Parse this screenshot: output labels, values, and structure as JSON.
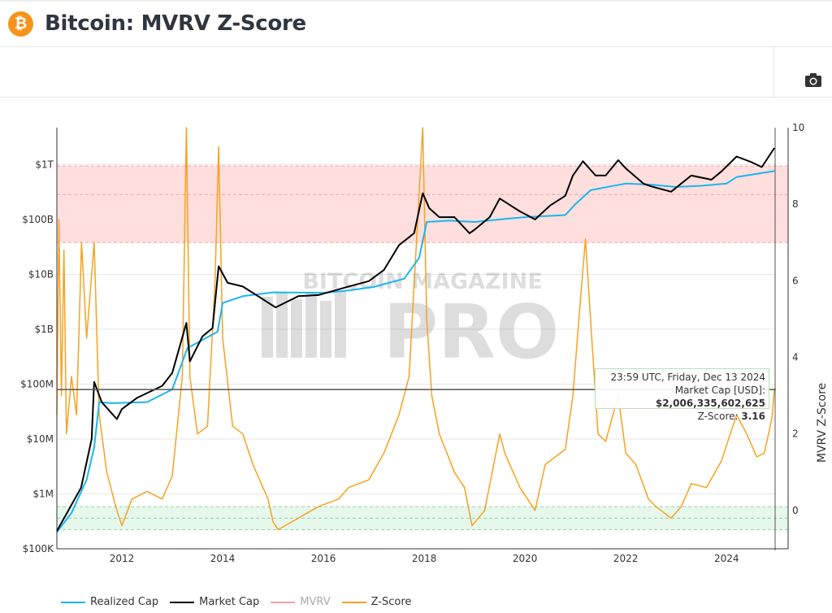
{
  "header": {
    "title": "Bitcoin: MVRV Z-Score",
    "logo_icon": "bitcoin-icon"
  },
  "toolbar": {
    "screenshot_icon": "camera-icon"
  },
  "watermark": {
    "line1": "BITCOIN MAGAZINE",
    "line2": "PRO"
  },
  "tooltip": {
    "datetime": "23:59 UTC, Friday, Dec 13 2024",
    "market_cap_label": "Market Cap [USD]: ",
    "market_cap_value": "$2,006,335,602,625",
    "zscore_label": "Z-Score: ",
    "zscore_value": "3.16"
  },
  "chart_data": {
    "type": "line",
    "x_ticks": [
      "2012",
      "2014",
      "2016",
      "2018",
      "2020",
      "2022",
      "2024"
    ],
    "xlim": [
      2010.71,
      2024.98
    ],
    "left_axis": {
      "scale": "log",
      "ticks": [
        "$100K",
        "$1M",
        "$10M",
        "$100M",
        "$1B",
        "$10B",
        "$100B",
        "$1T"
      ],
      "range": [
        100000,
        4700000000000.0
      ]
    },
    "right_axis": {
      "label": "MVRV Z-Score",
      "ticks": [
        "0",
        "2",
        "4",
        "6",
        "8",
        "10"
      ],
      "range": [
        -1,
        10
      ]
    },
    "bands": [
      {
        "from": 7,
        "to": 9,
        "mid": 8.25,
        "color": "#ffdede"
      },
      {
        "from": -0.5,
        "to": 0.1,
        "mid": -0.2,
        "color": "#e6f7ec"
      }
    ],
    "grid": true,
    "legend_placement": "bottom-left",
    "series": [
      {
        "name": "Realized Cap",
        "axis": "left",
        "color": "#1ab6ef",
        "visible": true,
        "points": [
          [
            2010.71,
            200000.0
          ],
          [
            2011.0,
            450000.0
          ],
          [
            2011.3,
            1800000.0
          ],
          [
            2011.45,
            7000000.0
          ],
          [
            2011.55,
            47000000.0
          ],
          [
            2011.8,
            45000000.0
          ],
          [
            2012.5,
            47000000.0
          ],
          [
            2013.0,
            80000000.0
          ],
          [
            2013.3,
            450000000.0
          ],
          [
            2013.9,
            900000000.0
          ],
          [
            2014.0,
            3000000000.0
          ],
          [
            2014.4,
            4000000000.0
          ],
          [
            2015.0,
            4700000000.0
          ],
          [
            2016.0,
            4600000000.0
          ],
          [
            2016.5,
            5100000000.0
          ],
          [
            2017.0,
            5900000000.0
          ],
          [
            2017.6,
            8300000000.0
          ],
          [
            2017.9,
            20000000000.0
          ],
          [
            2018.05,
            90000000000.0
          ],
          [
            2018.5,
            95000000000.0
          ],
          [
            2019.0,
            90000000000.0
          ],
          [
            2019.5,
            100000000000.0
          ],
          [
            2020.0,
            110000000000.0
          ],
          [
            2020.8,
            120000000000.0
          ],
          [
            2021.0,
            190000000000.0
          ],
          [
            2021.3,
            340000000000.0
          ],
          [
            2021.7,
            400000000000.0
          ],
          [
            2022.0,
            450000000000.0
          ],
          [
            2022.5,
            430000000000.0
          ],
          [
            2023.0,
            390000000000.0
          ],
          [
            2023.5,
            410000000000.0
          ],
          [
            2024.0,
            450000000000.0
          ],
          [
            2024.2,
            590000000000.0
          ],
          [
            2024.95,
            760000000000.0
          ]
        ]
      },
      {
        "name": "Market Cap",
        "axis": "left",
        "color": "#000000",
        "visible": true,
        "points": [
          [
            2010.71,
            210000.0
          ],
          [
            2011.19,
            1300000.0
          ],
          [
            2011.4,
            10000000.0
          ],
          [
            2011.45,
            110000000.0
          ],
          [
            2011.6,
            47000000.0
          ],
          [
            2011.9,
            23000000.0
          ],
          [
            2012.0,
            35000000.0
          ],
          [
            2012.3,
            56000000.0
          ],
          [
            2012.8,
            93000000.0
          ],
          [
            2013.0,
            160000000.0
          ],
          [
            2013.28,
            1300000000.0
          ],
          [
            2013.35,
            260000000.0
          ],
          [
            2013.6,
            740000000.0
          ],
          [
            2013.8,
            1050000000.0
          ],
          [
            2013.92,
            14000000000.0
          ],
          [
            2014.1,
            7000000000.0
          ],
          [
            2014.4,
            6000000000.0
          ],
          [
            2014.8,
            3500000000.0
          ],
          [
            2015.05,
            2500000000.0
          ],
          [
            2015.5,
            4000000000.0
          ],
          [
            2015.9,
            4200000000.0
          ],
          [
            2016.5,
            6000000000.0
          ],
          [
            2016.9,
            7500000000.0
          ],
          [
            2017.2,
            12000000000.0
          ],
          [
            2017.5,
            34000000000.0
          ],
          [
            2017.8,
            56000000000.0
          ],
          [
            2017.97,
            300000000000.0
          ],
          [
            2018.1,
            160000000000.0
          ],
          [
            2018.3,
            110000000000.0
          ],
          [
            2018.6,
            110000000000.0
          ],
          [
            2018.9,
            56000000000.0
          ],
          [
            2019.0,
            65000000000.0
          ],
          [
            2019.3,
            110000000000.0
          ],
          [
            2019.5,
            240000000000.0
          ],
          [
            2019.9,
            140000000000.0
          ],
          [
            2020.2,
            100000000000.0
          ],
          [
            2020.5,
            180000000000.0
          ],
          [
            2020.8,
            270000000000.0
          ],
          [
            2020.95,
            630000000000.0
          ],
          [
            2021.15,
            1150000000000.0
          ],
          [
            2021.4,
            630000000000.0
          ],
          [
            2021.6,
            630000000000.0
          ],
          [
            2021.85,
            1200000000000.0
          ],
          [
            2022.0,
            850000000000.0
          ],
          [
            2022.35,
            450000000000.0
          ],
          [
            2022.5,
            400000000000.0
          ],
          [
            2022.9,
            320000000000.0
          ],
          [
            2023.1,
            450000000000.0
          ],
          [
            2023.3,
            630000000000.0
          ],
          [
            2023.7,
            530000000000.0
          ],
          [
            2023.9,
            750000000000.0
          ],
          [
            2024.2,
            1400000000000.0
          ],
          [
            2024.5,
            1100000000000.0
          ],
          [
            2024.7,
            900000000000.0
          ],
          [
            2024.95,
            2006000000000.0
          ]
        ]
      },
      {
        "name": "MVRV",
        "axis": "right",
        "color": "#f8a1a1",
        "visible": false,
        "points": []
      },
      {
        "name": "Z-Score",
        "axis": "right",
        "color": "#f7a120",
        "visible": true,
        "points": [
          [
            2010.71,
            2.5
          ],
          [
            2010.75,
            7.6
          ],
          [
            2010.8,
            3.0
          ],
          [
            2010.85,
            6.8
          ],
          [
            2010.9,
            2.0
          ],
          [
            2011.0,
            3.5
          ],
          [
            2011.1,
            2.5
          ],
          [
            2011.2,
            7.0
          ],
          [
            2011.3,
            4.5
          ],
          [
            2011.45,
            7.0
          ],
          [
            2011.55,
            2.5
          ],
          [
            2011.7,
            1.0
          ],
          [
            2011.9,
            0.0
          ],
          [
            2012.0,
            -0.4
          ],
          [
            2012.2,
            0.3
          ],
          [
            2012.5,
            0.5
          ],
          [
            2012.8,
            0.3
          ],
          [
            2013.0,
            0.9
          ],
          [
            2013.2,
            3.5
          ],
          [
            2013.28,
            10.0
          ],
          [
            2013.35,
            3.5
          ],
          [
            2013.5,
            2.0
          ],
          [
            2013.7,
            2.2
          ],
          [
            2013.85,
            6.0
          ],
          [
            2013.92,
            9.5
          ],
          [
            2014.0,
            4.5
          ],
          [
            2014.2,
            2.2
          ],
          [
            2014.4,
            2.0
          ],
          [
            2014.6,
            1.2
          ],
          [
            2014.9,
            0.3
          ],
          [
            2015.0,
            -0.3
          ],
          [
            2015.1,
            -0.5
          ],
          [
            2015.5,
            -0.2
          ],
          [
            2015.9,
            0.1
          ],
          [
            2016.3,
            0.3
          ],
          [
            2016.5,
            0.6
          ],
          [
            2016.9,
            0.8
          ],
          [
            2017.2,
            1.5
          ],
          [
            2017.5,
            2.5
          ],
          [
            2017.7,
            3.5
          ],
          [
            2017.97,
            10.0
          ],
          [
            2018.05,
            5.0
          ],
          [
            2018.15,
            3.0
          ],
          [
            2018.3,
            2.0
          ],
          [
            2018.6,
            1.0
          ],
          [
            2018.8,
            0.6
          ],
          [
            2018.95,
            -0.4
          ],
          [
            2019.2,
            0.0
          ],
          [
            2019.5,
            2.0
          ],
          [
            2019.6,
            1.5
          ],
          [
            2019.9,
            0.6
          ],
          [
            2020.2,
            0.0
          ],
          [
            2020.4,
            1.2
          ],
          [
            2020.8,
            1.6
          ],
          [
            2020.95,
            3.0
          ],
          [
            2021.1,
            5.5
          ],
          [
            2021.2,
            7.1
          ],
          [
            2021.3,
            5.0
          ],
          [
            2021.45,
            2.0
          ],
          [
            2021.6,
            1.8
          ],
          [
            2021.85,
            3.0
          ],
          [
            2022.0,
            1.5
          ],
          [
            2022.2,
            1.2
          ],
          [
            2022.45,
            0.3
          ],
          [
            2022.6,
            0.1
          ],
          [
            2022.9,
            -0.2
          ],
          [
            2023.1,
            0.1
          ],
          [
            2023.3,
            0.7
          ],
          [
            2023.6,
            0.6
          ],
          [
            2023.9,
            1.3
          ],
          [
            2024.2,
            2.5
          ],
          [
            2024.4,
            2.0
          ],
          [
            2024.6,
            1.4
          ],
          [
            2024.75,
            1.5
          ],
          [
            2024.9,
            2.4
          ],
          [
            2024.95,
            3.16
          ]
        ]
      }
    ]
  }
}
